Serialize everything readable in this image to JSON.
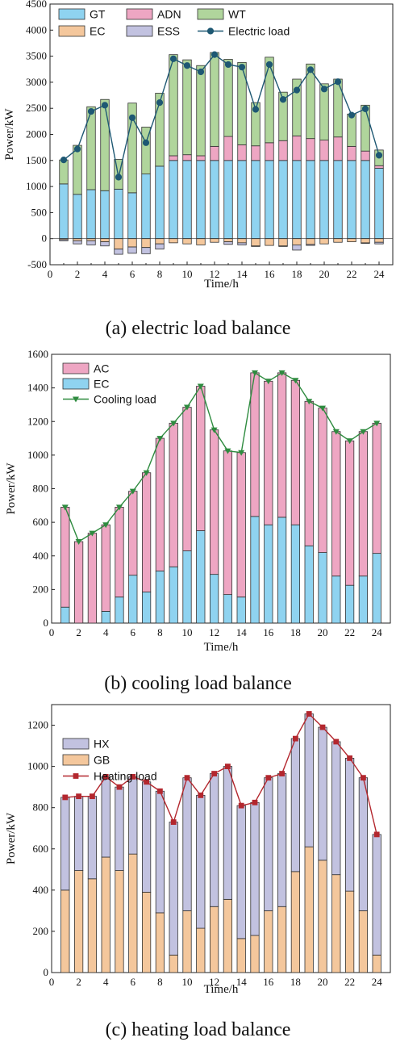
{
  "chart_data": [
    {
      "type": "bar",
      "stacked": true,
      "title": "",
      "caption": "(a) electric load balance",
      "xlabel": "Time/h",
      "ylabel": "Power/kW",
      "xlim": [
        0,
        25
      ],
      "ylim": [
        -500,
        4500
      ],
      "xticks": [
        0,
        2,
        4,
        6,
        8,
        10,
        12,
        14,
        16,
        18,
        20,
        22,
        24
      ],
      "yticks": [
        -500,
        0,
        500,
        1000,
        1500,
        2000,
        2500,
        3000,
        3500,
        4000,
        4500
      ],
      "grid": false,
      "legend": "top-left, 3 columns",
      "categories": [
        1,
        2,
        3,
        4,
        5,
        6,
        7,
        8,
        9,
        10,
        11,
        12,
        13,
        14,
        15,
        16,
        17,
        18,
        19,
        20,
        21,
        22,
        23,
        24
      ],
      "series": [
        {
          "name": "GT",
          "kind": "bar",
          "color": "#8fd3f0",
          "values": [
            1050,
            850,
            940,
            920,
            950,
            880,
            1240,
            1390,
            1500,
            1500,
            1500,
            1500,
            1500,
            1500,
            1500,
            1500,
            1500,
            1500,
            1500,
            1500,
            1500,
            1500,
            1500,
            1350
          ]
        },
        {
          "name": "ADN",
          "kind": "bar",
          "color": "#eea6c3",
          "values": [
            0,
            0,
            0,
            0,
            0,
            0,
            0,
            0,
            90,
            110,
            90,
            270,
            460,
            300,
            280,
            340,
            380,
            470,
            420,
            390,
            450,
            270,
            180,
            50
          ]
        },
        {
          "name": "WT",
          "kind": "bar",
          "color": "#b0d59c",
          "values": [
            460,
            940,
            1590,
            1750,
            570,
            1720,
            900,
            1400,
            1940,
            1820,
            1730,
            1800,
            1480,
            1580,
            830,
            1640,
            930,
            1090,
            1430,
            1080,
            1110,
            620,
            880,
            300
          ]
        },
        {
          "name": "EC",
          "kind": "bar",
          "color": "#f4c79c",
          "values": [
            -20,
            -40,
            -40,
            -60,
            -200,
            -160,
            -170,
            -100,
            -80,
            -100,
            -120,
            -70,
            -60,
            -80,
            -140,
            -130,
            -140,
            -120,
            -110,
            -100,
            -70,
            -60,
            -80,
            -70
          ]
        },
        {
          "name": "ESS",
          "kind": "bar",
          "color": "#c2c2e0",
          "values": [
            -20,
            -60,
            -80,
            -80,
            -100,
            -120,
            -120,
            -100,
            0,
            0,
            0,
            0,
            -50,
            -40,
            -10,
            0,
            -10,
            -100,
            -20,
            0,
            0,
            0,
            -10,
            -30
          ]
        },
        {
          "name": "Electric load",
          "kind": "line",
          "color": "#1e5873",
          "marker": "circle",
          "values": [
            1510,
            1720,
            2440,
            2560,
            1180,
            2320,
            1840,
            2610,
            3450,
            3320,
            3200,
            3530,
            3340,
            3290,
            2480,
            3340,
            2670,
            2850,
            3240,
            2870,
            3010,
            2370,
            2490,
            1600
          ]
        }
      ]
    },
    {
      "type": "bar",
      "stacked": true,
      "title": "",
      "caption": "(b) cooling load balance",
      "xlabel": "Time/h",
      "ylabel": "Power/kW",
      "xlim": [
        0,
        25
      ],
      "ylim": [
        0,
        1600
      ],
      "xticks": [
        0,
        2,
        4,
        6,
        8,
        10,
        12,
        14,
        16,
        18,
        20,
        22,
        24
      ],
      "yticks": [
        0,
        200,
        400,
        600,
        800,
        1000,
        1200,
        1400,
        1600
      ],
      "grid": false,
      "legend": "top-left",
      "categories": [
        1,
        2,
        3,
        4,
        5,
        6,
        7,
        8,
        9,
        10,
        11,
        12,
        13,
        14,
        15,
        16,
        17,
        18,
        19,
        20,
        21,
        22,
        23,
        24
      ],
      "series": [
        {
          "name": "EC",
          "kind": "bar",
          "color": "#8fd3f0",
          "values": [
            95,
            0,
            0,
            70,
            155,
            285,
            185,
            310,
            335,
            430,
            550,
            290,
            170,
            155,
            635,
            585,
            630,
            585,
            460,
            420,
            280,
            225,
            280,
            415
          ]
        },
        {
          "name": "AC",
          "kind": "bar",
          "color": "#eea6c3",
          "values": [
            595,
            485,
            535,
            515,
            535,
            500,
            710,
            790,
            855,
            855,
            860,
            860,
            855,
            860,
            855,
            855,
            860,
            860,
            860,
            860,
            860,
            860,
            860,
            775
          ]
        },
        {
          "name": "Cooling load",
          "kind": "line",
          "color": "#2e8b3f",
          "marker": "triangle-down",
          "values": [
            690,
            485,
            535,
            585,
            690,
            785,
            895,
            1100,
            1190,
            1285,
            1410,
            1150,
            1025,
            1015,
            1490,
            1440,
            1490,
            1445,
            1320,
            1280,
            1140,
            1085,
            1140,
            1190
          ]
        }
      ]
    },
    {
      "type": "bar",
      "stacked": true,
      "title": "",
      "caption": "(c) heating load balance",
      "xlabel": "Time/h",
      "ylabel": "Power/kW",
      "xlim": [
        0,
        25
      ],
      "ylim": [
        0,
        1300
      ],
      "xticks": [
        0,
        2,
        4,
        6,
        8,
        10,
        12,
        14,
        16,
        18,
        20,
        22,
        24
      ],
      "yticks": [
        0,
        200,
        400,
        600,
        800,
        1000,
        1200
      ],
      "grid": false,
      "legend": "top-left",
      "categories": [
        1,
        2,
        3,
        4,
        5,
        6,
        7,
        8,
        9,
        10,
        11,
        12,
        13,
        14,
        15,
        16,
        17,
        18,
        19,
        20,
        21,
        22,
        23,
        24
      ],
      "series": [
        {
          "name": "GB",
          "kind": "bar",
          "color": "#f4c79c",
          "values": [
            400,
            495,
            455,
            560,
            495,
            575,
            390,
            290,
            85,
            300,
            215,
            320,
            355,
            165,
            180,
            300,
            320,
            490,
            610,
            545,
            475,
            395,
            300,
            85
          ]
        },
        {
          "name": "HX",
          "kind": "bar",
          "color": "#c2c2e0",
          "values": [
            450,
            360,
            400,
            390,
            405,
            375,
            535,
            590,
            645,
            645,
            645,
            645,
            645,
            645,
            645,
            645,
            645,
            645,
            645,
            645,
            645,
            645,
            645,
            585
          ]
        },
        {
          "name": "Heating load",
          "kind": "line",
          "color": "#b3272e",
          "marker": "square",
          "values": [
            850,
            855,
            855,
            950,
            900,
            950,
            925,
            880,
            730,
            945,
            860,
            965,
            1000,
            810,
            825,
            945,
            965,
            1135,
            1255,
            1190,
            1120,
            1040,
            945,
            670
          ]
        }
      ]
    }
  ]
}
